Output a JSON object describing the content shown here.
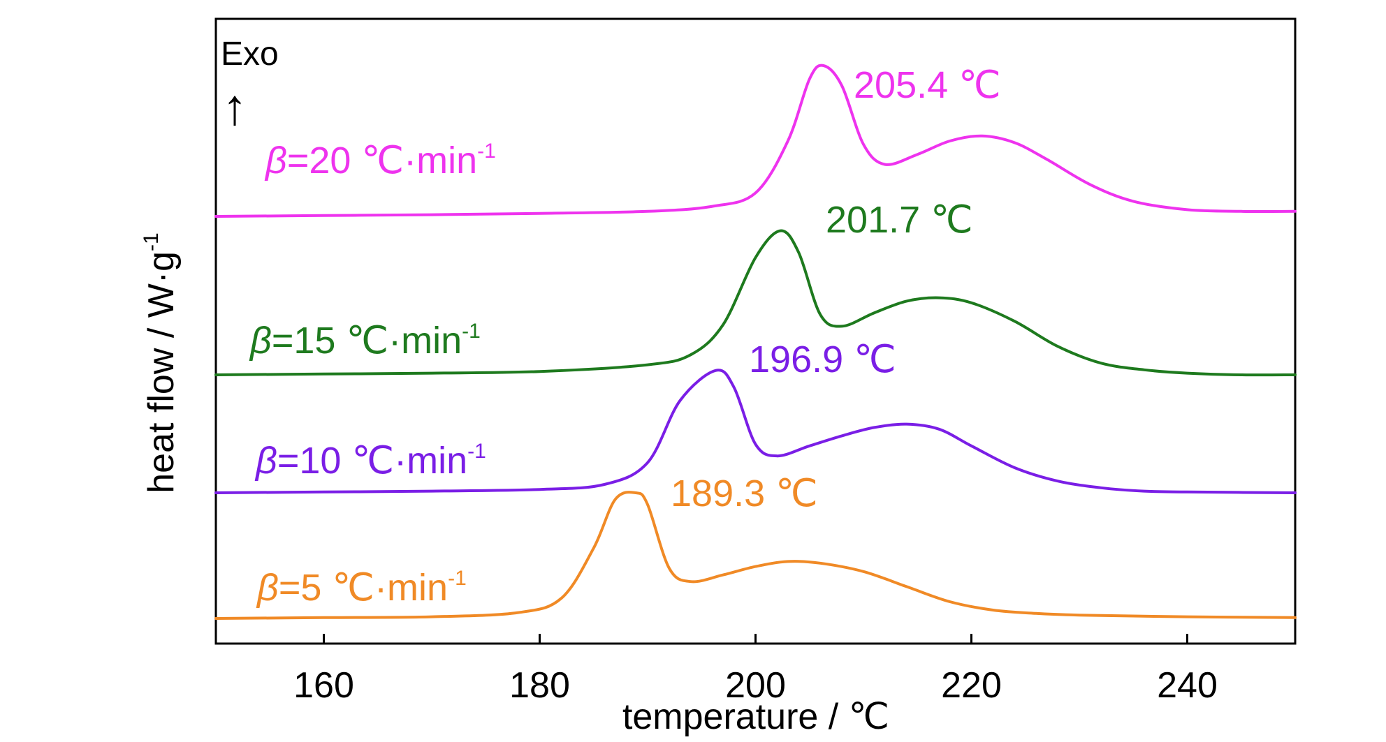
{
  "chart_data": {
    "type": "line",
    "xlabel": "temperature / ℃",
    "ylabel_main": "heat flow / W·g",
    "ylabel_sup": "-1",
    "xlim": [
      150,
      250
    ],
    "x_ticks": [
      160,
      180,
      200,
      220,
      240
    ],
    "grid": false,
    "exo_label": "Exo",
    "exo_arrow": "↑",
    "series": [
      {
        "rate_prefix": "β",
        "rate_text": "=20 ℃·min",
        "rate_sup": "-1",
        "peak_label": "205.4 ℃",
        "color": "#ee33ee",
        "x": [
          150,
          160,
          170,
          180,
          190,
          196,
          200,
          203,
          205,
          206.3,
          208,
          210,
          212,
          215,
          218,
          221,
          224,
          227,
          231,
          235,
          240,
          245,
          250
        ],
        "values": [
          0.0,
          0.05,
          0.1,
          0.18,
          0.3,
          0.6,
          1.4,
          4.5,
          8.2,
          9.0,
          7.8,
          4.3,
          3.1,
          3.7,
          4.5,
          4.8,
          4.4,
          3.4,
          1.9,
          0.9,
          0.4,
          0.3,
          0.3
        ]
      },
      {
        "rate_prefix": "β",
        "rate_text": "=15 ℃·min",
        "rate_sup": "-1",
        "peak_label": "201.7 ℃",
        "color": "#1e7a1e",
        "x": [
          150,
          160,
          170,
          180,
          190,
          194,
          197,
          200,
          202.3,
          204,
          206,
          208,
          211,
          214,
          217,
          220,
          224,
          228,
          232,
          236,
          240,
          245,
          250
        ],
        "values": [
          0.0,
          0.05,
          0.1,
          0.2,
          0.6,
          1.2,
          3.0,
          7.0,
          8.6,
          7.3,
          3.6,
          2.9,
          3.7,
          4.4,
          4.6,
          4.3,
          3.2,
          1.7,
          0.7,
          0.3,
          0.1,
          0.0,
          0.0
        ]
      },
      {
        "rate_prefix": "β",
        "rate_text": "=10 ℃·min",
        "rate_sup": "-1",
        "peak_label": "196.9 ℃",
        "color": "#7a1ee6",
        "x": [
          150,
          160,
          170,
          180,
          186,
          190,
          193,
          196.3,
          198,
          200,
          202,
          205,
          208,
          211,
          214,
          217,
          220,
          224,
          228,
          232,
          236,
          240,
          250
        ],
        "values": [
          0.0,
          0.05,
          0.1,
          0.2,
          0.5,
          1.8,
          5.5,
          7.3,
          6.3,
          2.9,
          2.2,
          2.8,
          3.4,
          3.9,
          4.1,
          3.8,
          2.8,
          1.5,
          0.7,
          0.3,
          0.1,
          0.05,
          0.0
        ]
      },
      {
        "rate_prefix": "β",
        "rate_text": "=5 ℃·min",
        "rate_sup": "-1",
        "peak_label": "189.3 ℃",
        "color": "#f08a26",
        "x": [
          150,
          160,
          170,
          178,
          182,
          185,
          187,
          188.9,
          190,
          192,
          194,
          197,
          200,
          203,
          206,
          210,
          214,
          218,
          222,
          226,
          230,
          240,
          250
        ],
        "values": [
          0.0,
          0.05,
          0.1,
          0.35,
          1.2,
          4.2,
          7.1,
          7.5,
          6.8,
          3.0,
          2.2,
          2.6,
          3.1,
          3.4,
          3.3,
          2.8,
          1.9,
          1.0,
          0.5,
          0.3,
          0.2,
          0.1,
          0.05
        ]
      }
    ]
  }
}
